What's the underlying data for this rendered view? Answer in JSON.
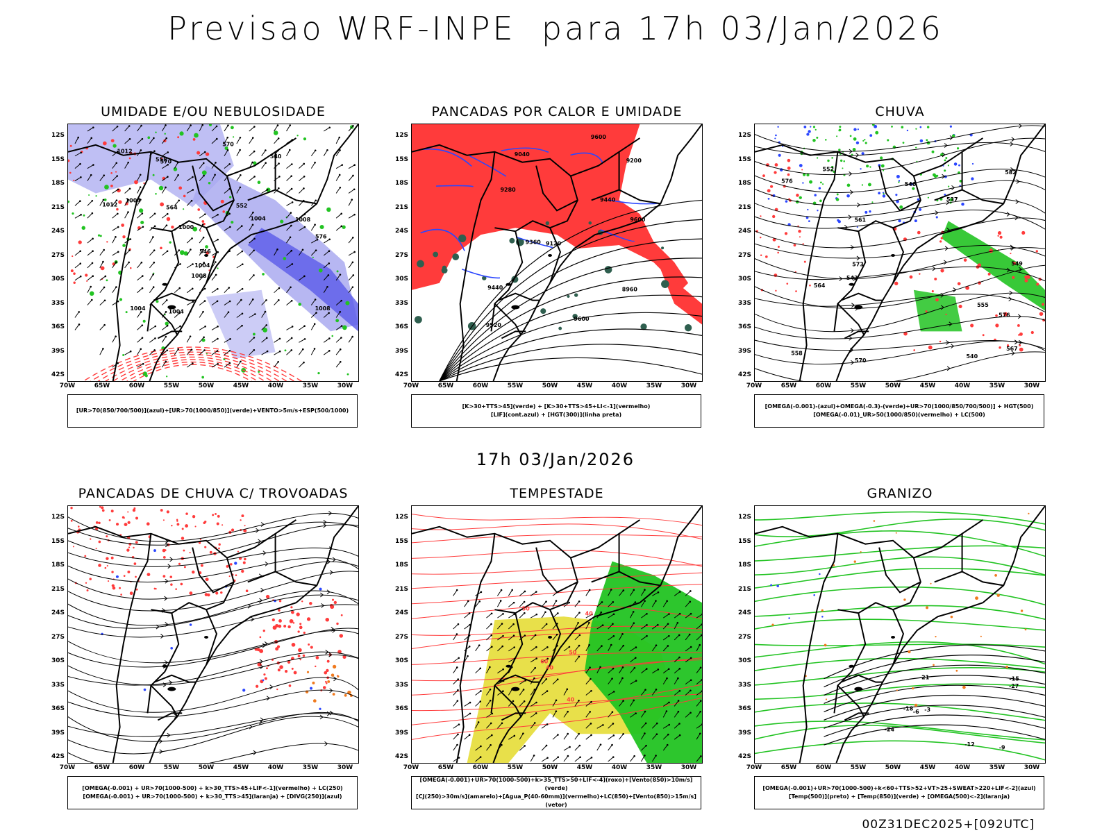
{
  "header": {
    "title": "Previsao WRF-INPE  para 17h 03/Jan/2026"
  },
  "middle_date": "17h 03/Jan/2026",
  "footer": {
    "run_code": "00Z31DEC2025+[092UTC]"
  },
  "axes": {
    "lat_labels": [
      "12S",
      "15S",
      "18S",
      "21S",
      "24S",
      "27S",
      "30S",
      "33S",
      "36S",
      "39S",
      "42S"
    ],
    "lon_labels": [
      "70W",
      "65W",
      "60W",
      "55W",
      "50W",
      "45W",
      "40W",
      "35W",
      "30W"
    ]
  },
  "colors": {
    "red": "#ff3b3b",
    "green": "#22c322",
    "blue": "#2b46ff",
    "lavender": "#aaaaf0",
    "yellow": "#e8e04a",
    "orange": "#f07a1e",
    "darkgreen": "#2f5f4f"
  },
  "panels": [
    {
      "title": "UMIDADE E/OU NEBULOSIDADE",
      "legend": [
        "[UR>70(850/700/500)](azul)+[UR>70(1000/850)](verde)+VENTO>5m/s+ESP(500/1000)"
      ],
      "contour_labels": [
        "1008",
        "1004",
        "1004",
        "1012",
        "1008",
        "1004",
        "1004",
        "1012",
        "1000",
        "1004",
        "1008",
        "570",
        "576",
        "564",
        "570",
        "558",
        "552",
        "546",
        "540"
      ]
    },
    {
      "title": "PANCADAS POR CALOR E UMIDADE",
      "legend": [
        "[K>30+TTS>45](verde) + [K>30+TTS>45+LI<-1](vermelho)",
        "[LIF](cont.azul) + [HGT(300)](linha preta)"
      ],
      "contour_labels": [
        "9600",
        "9600",
        "9520",
        "9600",
        "9440",
        "9360",
        "9280",
        "9200",
        "9120",
        "9040",
        "8960",
        "9440"
      ]
    },
    {
      "title": "CHUVA",
      "legend": [
        "[OMEGA(-0.001)-(azul)+OMEGA(-0.3)-(verde)+UR>70(1000/850/700/500)] + HGT(500)",
        "[OMEGA(-0.01)_UR>50(1000/850)(vermelho) + LC(500)"
      ],
      "contour_labels": [
        "582",
        "576",
        "576",
        "573",
        "570",
        "567",
        "564",
        "561",
        "558",
        "555",
        "552",
        "549",
        "546",
        "543",
        "540",
        "537"
      ]
    },
    {
      "title": "PANCADAS DE CHUVA C/ TROVOADAS",
      "legend": [
        "[OMEGA(-0.001) + UR>70(1000-500) + k>30_TTS>45+LIF<-1](vermelho) + LC(250)",
        "[OMEGA(-0.001) + UR>70(1000-500) + k>30_TTS>45](laranja) + [DIVG(250)](azul)"
      ],
      "contour_labels": []
    },
    {
      "title": "TEMPESTADE",
      "legend": [
        "[OMEGA(-0.001)+UR>70(1000-500)+k>35_TTS>50+LIF<-4](roxo)+[Vento(850)>10m/s](verde)",
        "[CJ(250)>30m/s](amarelo)+[Agua_P(40-60mm)](vermelho)+LC(850)+[Vento(850)>15m/s](vetor)"
      ],
      "contour_labels": [
        "40",
        "50",
        "40",
        "60",
        "50",
        "40"
      ]
    },
    {
      "title": "GRANIZO",
      "legend": [
        "[OMEGA(-0.001)+UR>70(1000-500)+k<60+TTS>52+VT>25+SWEAT>220+LIF<-2](azul)",
        "[Temp(500)](preto) + [Temp(850)](verde) + [OMEGA(500)<-2](laranja)"
      ],
      "contour_labels": [
        "-3",
        "-6",
        "-9",
        "-12",
        "-15",
        "-18",
        "-21",
        "-24",
        "-27"
      ]
    }
  ]
}
